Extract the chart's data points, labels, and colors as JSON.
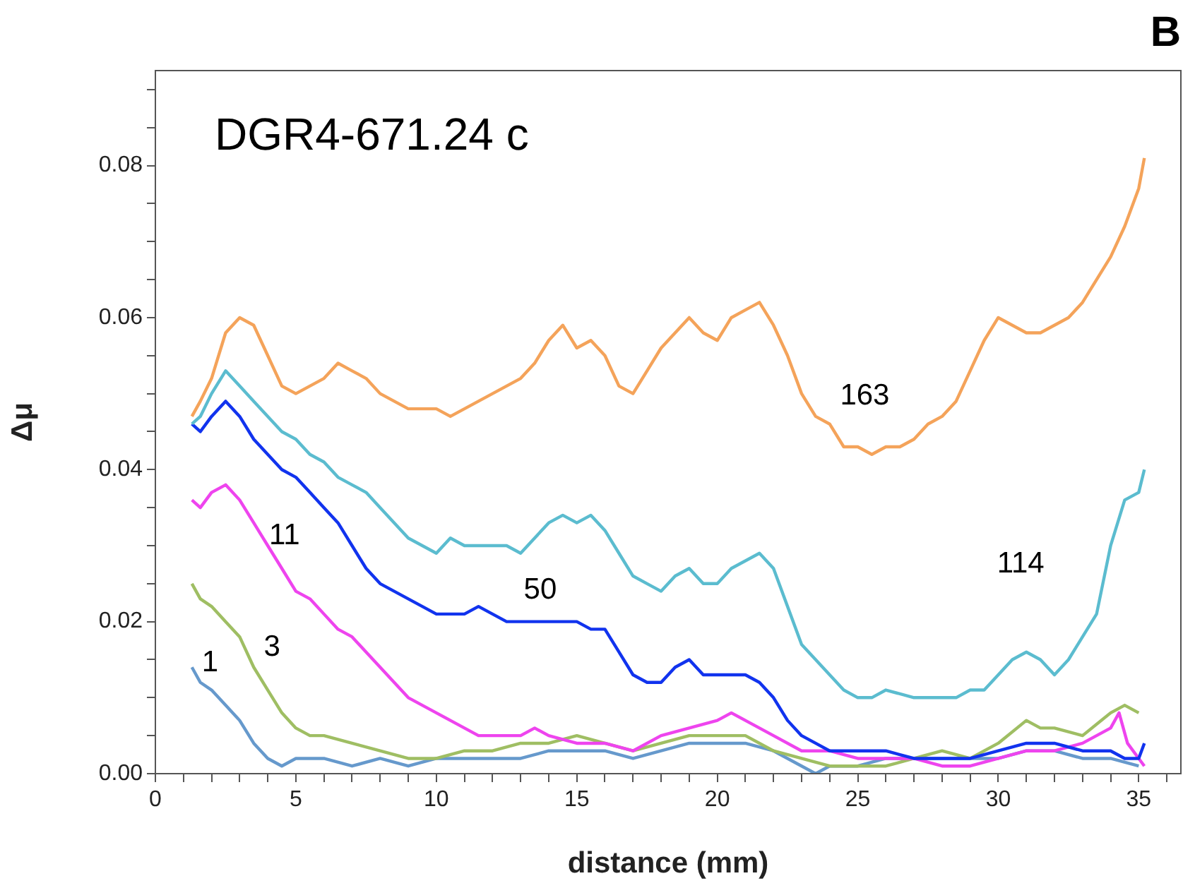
{
  "chart_data": {
    "type": "line",
    "title": "DGR4-671.24 c",
    "xlabel": "distance (mm)",
    "ylabel": "Δμ",
    "annotations": [
      "B"
    ],
    "xlim": [
      0,
      36.5
    ],
    "ylim": [
      0,
      0.0925
    ],
    "xticks": [
      0,
      {
        "value": 1,
        "label": null
      },
      {
        "value": 2,
        "label": null
      },
      {
        "value": 3,
        "label": null
      },
      {
        "value": 4,
        "label": null
      },
      5,
      {
        "value": 6,
        "label": null
      },
      {
        "value": 7,
        "label": null
      },
      {
        "value": 8,
        "label": null
      },
      {
        "value": 9,
        "label": null
      },
      10,
      {
        "value": 11,
        "label": null
      },
      {
        "value": 12,
        "label": null
      },
      {
        "value": 13,
        "label": null
      },
      {
        "value": 14,
        "label": null
      },
      15,
      {
        "value": 16,
        "label": null
      },
      {
        "value": 17,
        "label": null
      },
      {
        "value": 18,
        "label": null
      },
      {
        "value": 19,
        "label": null
      },
      20,
      {
        "value": 21,
        "label": null
      },
      {
        "value": 22,
        "label": null
      },
      {
        "value": 23,
        "label": null
      },
      {
        "value": 24,
        "label": null
      },
      25,
      {
        "value": 26,
        "label": null
      },
      {
        "value": 27,
        "label": null
      },
      {
        "value": 28,
        "label": null
      },
      {
        "value": 29,
        "label": null
      },
      30,
      {
        "value": 31,
        "label": null
      },
      {
        "value": 32,
        "label": null
      },
      {
        "value": 33,
        "label": null
      },
      {
        "value": 34,
        "label": null
      },
      35,
      {
        "value": 36,
        "label": null
      }
    ],
    "yticks": [
      {
        "value": 0,
        "label": "0.00"
      },
      {
        "value": 0.005,
        "label": null
      },
      {
        "value": 0.01,
        "label": null
      },
      {
        "value": 0.015,
        "label": null
      },
      {
        "value": 0.02,
        "label": "0.02"
      },
      {
        "value": 0.025,
        "label": null
      },
      {
        "value": 0.03,
        "label": null
      },
      {
        "value": 0.035,
        "label": null
      },
      {
        "value": 0.04,
        "label": "0.04"
      },
      {
        "value": 0.045,
        "label": null
      },
      {
        "value": 0.05,
        "label": null
      },
      {
        "value": 0.055,
        "label": null
      },
      {
        "value": 0.06,
        "label": "0.06"
      },
      {
        "value": 0.065,
        "label": null
      },
      {
        "value": 0.07,
        "label": null
      },
      {
        "value": 0.075,
        "label": null
      },
      {
        "value": 0.08,
        "label": "0.08"
      },
      {
        "value": 0.085,
        "label": null
      },
      {
        "value": 0.09,
        "label": null
      }
    ],
    "grid": false,
    "legend": false,
    "marker": "none",
    "line_style": "solid",
    "series": [
      {
        "name": "163",
        "color": "#f4a35a",
        "x": [
          1.3,
          1.6,
          2,
          2.5,
          3,
          3.5,
          4,
          4.5,
          5,
          5.5,
          6,
          6.5,
          7,
          7.5,
          8,
          8.5,
          9,
          9.5,
          10,
          10.5,
          11,
          11.5,
          12,
          12.5,
          13,
          13.5,
          14,
          14.5,
          15,
          15.5,
          16,
          16.5,
          17,
          17.5,
          18,
          18.5,
          19,
          19.5,
          20,
          20.5,
          21,
          21.5,
          22,
          22.5,
          23,
          23.5,
          24,
          24.5,
          25,
          25.5,
          26,
          26.5,
          27,
          27.5,
          28,
          28.5,
          29,
          29.5,
          30,
          30.5,
          31,
          31.5,
          32,
          32.5,
          33,
          33.5,
          34,
          34.5,
          35,
          35.2
        ],
        "values": [
          0.047,
          0.049,
          0.052,
          0.058,
          0.06,
          0.059,
          0.055,
          0.051,
          0.05,
          0.051,
          0.052,
          0.054,
          0.053,
          0.052,
          0.05,
          0.049,
          0.048,
          0.048,
          0.048,
          0.047,
          0.048,
          0.049,
          0.05,
          0.051,
          0.052,
          0.054,
          0.057,
          0.059,
          0.056,
          0.057,
          0.055,
          0.051,
          0.05,
          0.053,
          0.056,
          0.058,
          0.06,
          0.058,
          0.057,
          0.06,
          0.061,
          0.062,
          0.059,
          0.055,
          0.05,
          0.047,
          0.046,
          0.043,
          0.043,
          0.042,
          0.043,
          0.043,
          0.044,
          0.046,
          0.047,
          0.049,
          0.053,
          0.057,
          0.06,
          0.059,
          0.058,
          0.058,
          0.059,
          0.06,
          0.062,
          0.065,
          0.068,
          0.072,
          0.077,
          0.081
        ]
      },
      {
        "name": "114",
        "color": "#5bbccf",
        "x": [
          1.3,
          1.6,
          2,
          2.5,
          3,
          3.5,
          4,
          4.5,
          5,
          5.5,
          6,
          6.5,
          7,
          7.5,
          8,
          8.5,
          9,
          9.5,
          10,
          10.5,
          11,
          11.5,
          12,
          12.5,
          13,
          13.5,
          14,
          14.5,
          15,
          15.5,
          16,
          16.5,
          17,
          17.5,
          18,
          18.5,
          19,
          19.5,
          20,
          20.5,
          21,
          21.5,
          22,
          22.5,
          23,
          23.5,
          24,
          24.5,
          25,
          25.5,
          26,
          27,
          28,
          28.5,
          29,
          29.5,
          30,
          30.5,
          31,
          31.5,
          32,
          32.5,
          33,
          33.5,
          34,
          34.5,
          35,
          35.2
        ],
        "values": [
          0.046,
          0.047,
          0.05,
          0.053,
          0.051,
          0.049,
          0.047,
          0.045,
          0.044,
          0.042,
          0.041,
          0.039,
          0.038,
          0.037,
          0.035,
          0.033,
          0.031,
          0.03,
          0.029,
          0.031,
          0.03,
          0.03,
          0.03,
          0.03,
          0.029,
          0.031,
          0.033,
          0.034,
          0.033,
          0.034,
          0.032,
          0.029,
          0.026,
          0.025,
          0.024,
          0.026,
          0.027,
          0.025,
          0.025,
          0.027,
          0.028,
          0.029,
          0.027,
          0.022,
          0.017,
          0.015,
          0.013,
          0.011,
          0.01,
          0.01,
          0.011,
          0.01,
          0.01,
          0.01,
          0.011,
          0.011,
          0.013,
          0.015,
          0.016,
          0.015,
          0.013,
          0.015,
          0.018,
          0.021,
          0.03,
          0.036,
          0.037,
          0.04
        ]
      },
      {
        "name": "50",
        "color": "#1133ee",
        "x": [
          1.3,
          1.6,
          2,
          2.5,
          3,
          3.5,
          4,
          4.5,
          5,
          5.5,
          6,
          6.5,
          7,
          7.5,
          8,
          8.5,
          9,
          9.5,
          10,
          10.5,
          11,
          11.5,
          12,
          12.5,
          13,
          13.5,
          14,
          14.5,
          15,
          15.5,
          16,
          16.5,
          17,
          17.5,
          18,
          18.5,
          19,
          19.5,
          20,
          20.5,
          21,
          21.5,
          22,
          22.5,
          23,
          23.5,
          24,
          25,
          26,
          27,
          28,
          29,
          30,
          31,
          32,
          33,
          34,
          34.5,
          35,
          35.2
        ],
        "values": [
          0.046,
          0.045,
          0.047,
          0.049,
          0.047,
          0.044,
          0.042,
          0.04,
          0.039,
          0.037,
          0.035,
          0.033,
          0.03,
          0.027,
          0.025,
          0.024,
          0.023,
          0.022,
          0.021,
          0.021,
          0.021,
          0.022,
          0.021,
          0.02,
          0.02,
          0.02,
          0.02,
          0.02,
          0.02,
          0.019,
          0.019,
          0.016,
          0.013,
          0.012,
          0.012,
          0.014,
          0.015,
          0.013,
          0.013,
          0.013,
          0.013,
          0.012,
          0.01,
          0.007,
          0.005,
          0.004,
          0.003,
          0.003,
          0.003,
          0.002,
          0.002,
          0.002,
          0.003,
          0.004,
          0.004,
          0.003,
          0.003,
          0.002,
          0.002,
          0.004
        ]
      },
      {
        "name": "11",
        "color": "#ee44ee",
        "x": [
          1.3,
          1.6,
          2,
          2.5,
          3,
          3.5,
          4,
          4.5,
          5,
          5.5,
          6,
          6.5,
          7,
          7.5,
          8,
          8.5,
          9,
          9.5,
          10,
          10.5,
          11,
          11.5,
          12,
          12.5,
          13,
          13.5,
          14,
          15,
          16,
          17,
          18,
          19,
          20,
          20.5,
          21,
          21.5,
          22,
          23,
          24,
          25,
          26,
          27,
          28,
          29,
          30,
          31,
          32,
          33,
          33.5,
          34,
          34.3,
          34.6,
          35,
          35.2
        ],
        "values": [
          0.036,
          0.035,
          0.037,
          0.038,
          0.036,
          0.033,
          0.03,
          0.027,
          0.024,
          0.023,
          0.021,
          0.019,
          0.018,
          0.016,
          0.014,
          0.012,
          0.01,
          0.009,
          0.008,
          0.007,
          0.006,
          0.005,
          0.005,
          0.005,
          0.005,
          0.006,
          0.005,
          0.004,
          0.004,
          0.003,
          0.005,
          0.006,
          0.007,
          0.008,
          0.007,
          0.006,
          0.005,
          0.003,
          0.003,
          0.002,
          0.002,
          0.002,
          0.001,
          0.001,
          0.002,
          0.003,
          0.003,
          0.004,
          0.005,
          0.006,
          0.008,
          0.004,
          0.002,
          0.001
        ]
      },
      {
        "name": "3",
        "color": "#9fbe63",
        "x": [
          1.3,
          1.6,
          2,
          2.5,
          3,
          3.5,
          4,
          4.5,
          5,
          5.5,
          6,
          7,
          8,
          9,
          10,
          11,
          12,
          13,
          14,
          15,
          16,
          17,
          18,
          19,
          20,
          21,
          22,
          23,
          24,
          25,
          26,
          27,
          28,
          29,
          30,
          31,
          31.5,
          32,
          33,
          34,
          34.5,
          35
        ],
        "values": [
          0.025,
          0.023,
          0.022,
          0.02,
          0.018,
          0.014,
          0.011,
          0.008,
          0.006,
          0.005,
          0.005,
          0.004,
          0.003,
          0.002,
          0.002,
          0.003,
          0.003,
          0.004,
          0.004,
          0.005,
          0.004,
          0.003,
          0.004,
          0.005,
          0.005,
          0.005,
          0.003,
          0.002,
          0.001,
          0.001,
          0.001,
          0.002,
          0.003,
          0.002,
          0.004,
          0.007,
          0.006,
          0.006,
          0.005,
          0.008,
          0.009,
          0.008
        ]
      },
      {
        "name": "1",
        "color": "#6699cc",
        "x": [
          1.3,
          1.6,
          2,
          2.5,
          3,
          3.5,
          4,
          4.5,
          5,
          6,
          7,
          8,
          9,
          10,
          11,
          12,
          13,
          14,
          15,
          16,
          17,
          18,
          19,
          20,
          21,
          22,
          23,
          23.5,
          24,
          25,
          26,
          27,
          28,
          29,
          30,
          31,
          32,
          33,
          34,
          35
        ],
        "values": [
          0.014,
          0.012,
          0.011,
          0.009,
          0.007,
          0.004,
          0.002,
          0.001,
          0.002,
          0.002,
          0.001,
          0.002,
          0.001,
          0.002,
          0.002,
          0.002,
          0.002,
          0.003,
          0.003,
          0.003,
          0.002,
          0.003,
          0.004,
          0.004,
          0.004,
          0.003,
          0.001,
          0,
          0.001,
          0.001,
          0.002,
          0.002,
          0.002,
          0.002,
          0.002,
          0.003,
          0.003,
          0.002,
          0.002,
          0.001
        ]
      }
    ]
  }
}
